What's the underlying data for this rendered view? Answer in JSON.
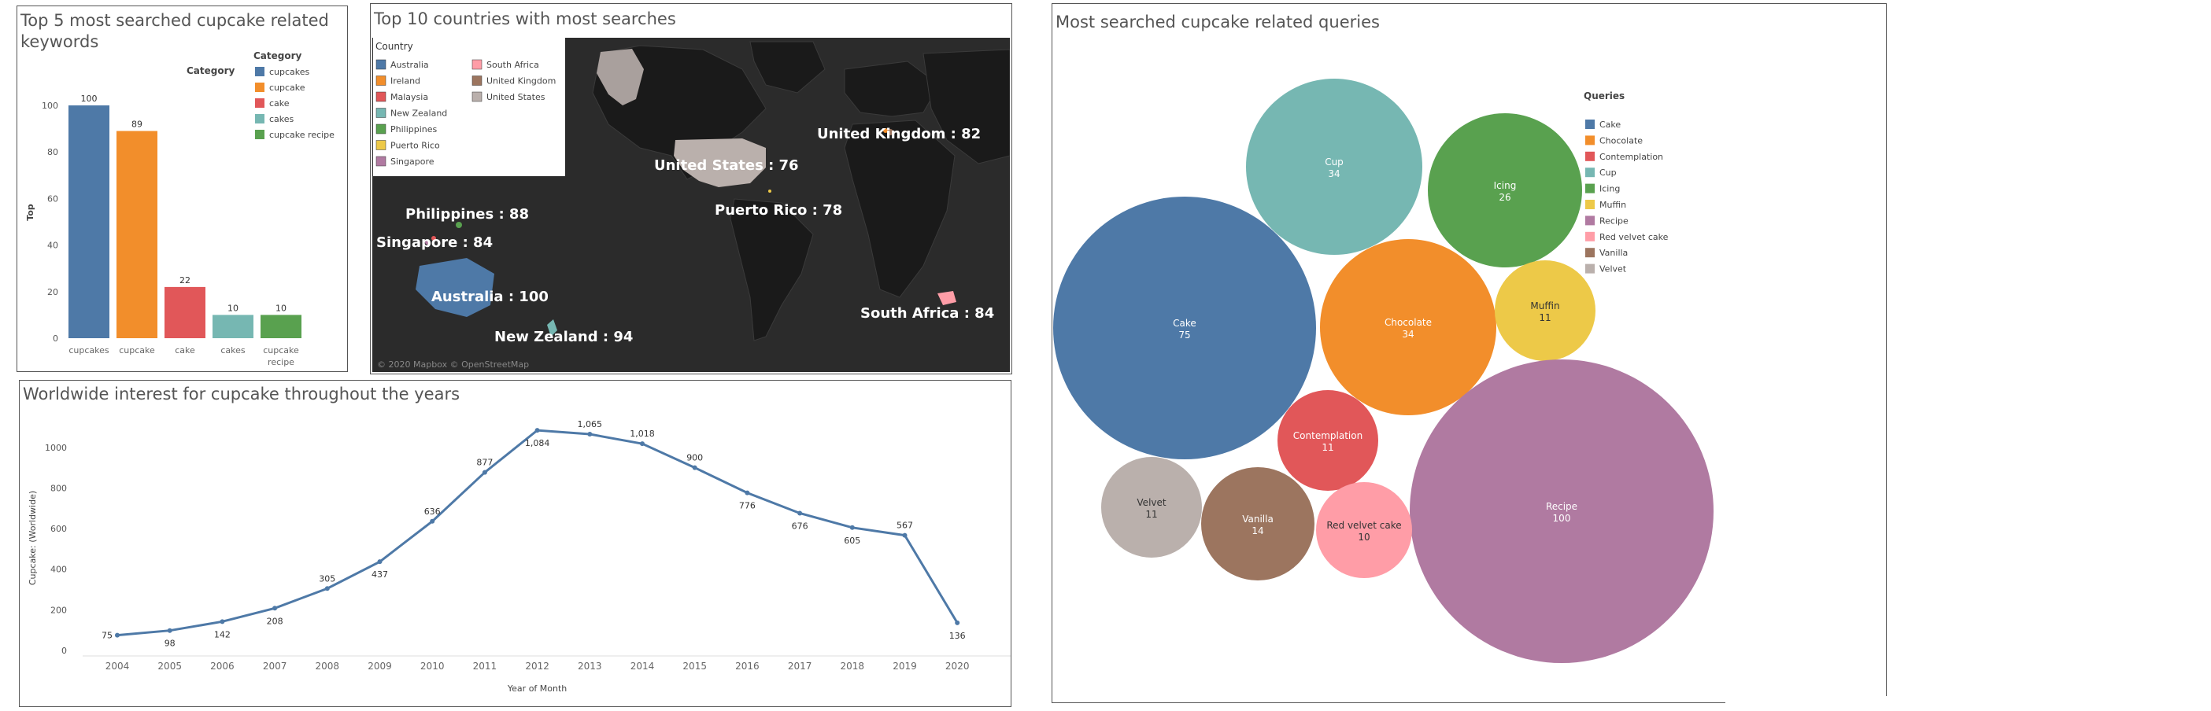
{
  "colors": {
    "blue": "#4e79a7",
    "orange": "#f28e2b",
    "red": "#e15759",
    "teal": "#76b7b2",
    "green": "#59a14f",
    "yellow": "#edc948",
    "purple": "#b07aa1",
    "pink": "#ff9da7",
    "brown": "#9c755f",
    "gray": "#bab0ac"
  },
  "bar_panel": {
    "title_line1": "Top 5 most searched cupcake related",
    "title_line2": "keywords",
    "category_label": "Category",
    "legend_title": "Category"
  },
  "map_panel": {
    "title": "Top 10 countries with most searches",
    "legend_title": "Country",
    "legend_col1": [
      "Australia",
      "Ireland",
      "Malaysia",
      "New Zealand",
      "Philippines",
      "Puerto Rico",
      "Singapore"
    ],
    "legend_col2": [
      "South Africa",
      "United Kingdom",
      "United States"
    ],
    "attribution": "© 2020 Mapbox © OpenStreetMap",
    "labels": [
      {
        "text": "United Kingdom : 82"
      },
      {
        "text": "United States : 76"
      },
      {
        "text": "Puerto Rico : 78"
      },
      {
        "text": "Philippines : 88"
      },
      {
        "text": "Singapore : 84"
      },
      {
        "text": "Australia : 100"
      },
      {
        "text": "New Zealand : 94"
      },
      {
        "text": "South Africa : 84"
      }
    ]
  },
  "line_panel": {
    "title": "Worldwide interest for cupcake throughout the years"
  },
  "bubble_panel": {
    "title": "Most searched cupcake related queries",
    "legend_title": "Queries"
  },
  "chart_data": [
    {
      "type": "bar",
      "title": "Top 5 most searched cupcake related keywords",
      "xlabel": "",
      "ylabel": "Top",
      "ylim": [
        0,
        100
      ],
      "yticks": [
        "0",
        "20",
        "40",
        "60",
        "80",
        "100"
      ],
      "categories": [
        "cupcakes",
        "cupcake",
        "cake",
        "cakes",
        "cupcake recipe"
      ],
      "category_lines": [
        [
          "cupcakes"
        ],
        [
          "cupcake"
        ],
        [
          "cake"
        ],
        [
          "cakes"
        ],
        [
          "cupcake",
          "recipe"
        ]
      ],
      "values": [
        100,
        89,
        22,
        10,
        10
      ],
      "legend": [
        "cupcakes",
        "cupcake",
        "cake",
        "cakes",
        "cupcake recipe"
      ],
      "legend_placement": "top-right",
      "grid": false
    },
    {
      "type": "line",
      "title": "Worldwide interest for cupcake throughout the years",
      "xlabel": "Year of Month",
      "ylabel": "Cupcake: (Worldwide)",
      "ylim": [
        0,
        1100
      ],
      "yticks": [
        "0",
        "200",
        "400",
        "600",
        "800",
        "1000"
      ],
      "x": [
        "2004",
        "2005",
        "2006",
        "2007",
        "2008",
        "2009",
        "2010",
        "2011",
        "2012",
        "2013",
        "2014",
        "2015",
        "2016",
        "2017",
        "2018",
        "2019",
        "2020"
      ],
      "values": [
        75,
        98,
        142,
        208,
        305,
        437,
        636,
        877,
        1084,
        1065,
        1018,
        900,
        776,
        676,
        605,
        567,
        136
      ],
      "data_labels": [
        "75",
        "98",
        "142",
        "208",
        "305",
        "437",
        "636",
        "877",
        "1,084",
        "1,065",
        "1,018",
        "900",
        "776",
        "676",
        "605",
        "567",
        "136"
      ],
      "grid": false
    },
    {
      "type": "bubble",
      "title": "Most searched cupcake related queries",
      "items": [
        {
          "name": "Cake",
          "value": 75
        },
        {
          "name": "Chocolate",
          "value": 34
        },
        {
          "name": "Contemplation",
          "value": 11
        },
        {
          "name": "Cup",
          "value": 34
        },
        {
          "name": "Icing",
          "value": 26
        },
        {
          "name": "Muffin",
          "value": 11
        },
        {
          "name": "Recipe",
          "value": 100
        },
        {
          "name": "Red velvet cake",
          "value": 10
        },
        {
          "name": "Vanilla",
          "value": 14
        },
        {
          "name": "Velvet",
          "value": 11
        }
      ],
      "legend": [
        "Cake",
        "Chocolate",
        "Contemplation",
        "Cup",
        "Icing",
        "Muffin",
        "Recipe",
        "Red velvet cake",
        "Vanilla",
        "Velvet"
      ],
      "legend_placement": "top-right"
    }
  ]
}
